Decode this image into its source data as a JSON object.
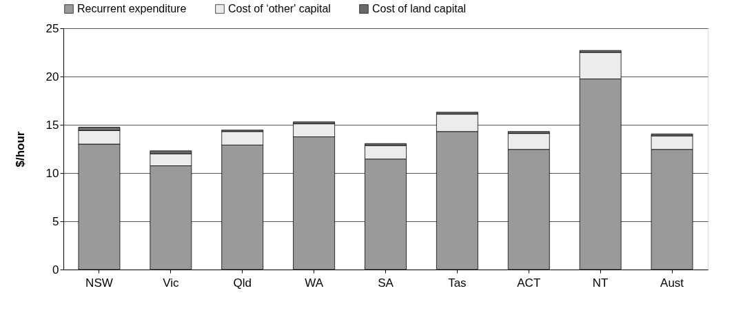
{
  "chart_data": {
    "type": "bar",
    "stacked": true,
    "ylabel": "$/hour",
    "categories": [
      "NSW",
      "Vic",
      "Qld",
      "WA",
      "SA",
      "Tas",
      "ACT",
      "NT",
      "Aust"
    ],
    "series": [
      {
        "name": "Recurrent expenditure",
        "color": "#9a9a9a",
        "values": [
          13.0,
          10.75,
          12.9,
          13.75,
          11.45,
          14.3,
          12.45,
          19.75,
          12.45
        ]
      },
      {
        "name": "Cost of ‘other' capital",
        "color": "#ececec",
        "values": [
          1.4,
          1.25,
          1.4,
          1.35,
          1.4,
          1.8,
          1.65,
          2.75,
          1.4
        ]
      },
      {
        "name": "Cost of land capital",
        "color": "#6a6a6a",
        "values": [
          0.35,
          0.3,
          0.15,
          0.2,
          0.2,
          0.2,
          0.2,
          0.2,
          0.2
        ]
      }
    ],
    "ylim": [
      0,
      25
    ],
    "yticks": [
      0,
      5,
      10,
      15,
      20,
      25
    ],
    "grid": "y",
    "legend": "top"
  }
}
